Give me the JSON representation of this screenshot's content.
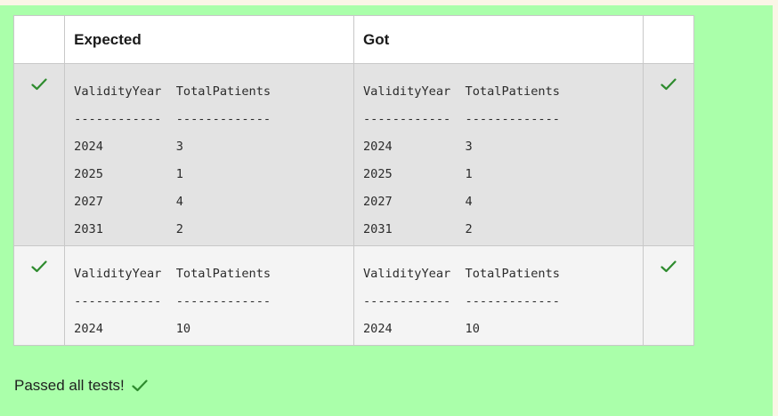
{
  "colors": {
    "panel_bg": "#aaffaa",
    "check_green": "#2e8b2e"
  },
  "table": {
    "headers": {
      "mark_left": "",
      "expected": "Expected",
      "got": "Got",
      "mark_right": ""
    },
    "rows": [
      {
        "status_icon": "check-icon",
        "expected": "ValidityYear  TotalPatients\n------------  -------------\n2024          3\n2025          1\n2027          4\n2031          2",
        "got": "ValidityYear  TotalPatients\n------------  -------------\n2024          3\n2025          1\n2027          4\n2031          2"
      },
      {
        "status_icon": "check-icon",
        "expected": "ValidityYear  TotalPatients\n------------  -------------\n2024          10",
        "got": "ValidityYear  TotalPatients\n------------  -------------\n2024          10"
      }
    ]
  },
  "summary": {
    "text": "Passed all tests!",
    "icon": "check-icon"
  }
}
